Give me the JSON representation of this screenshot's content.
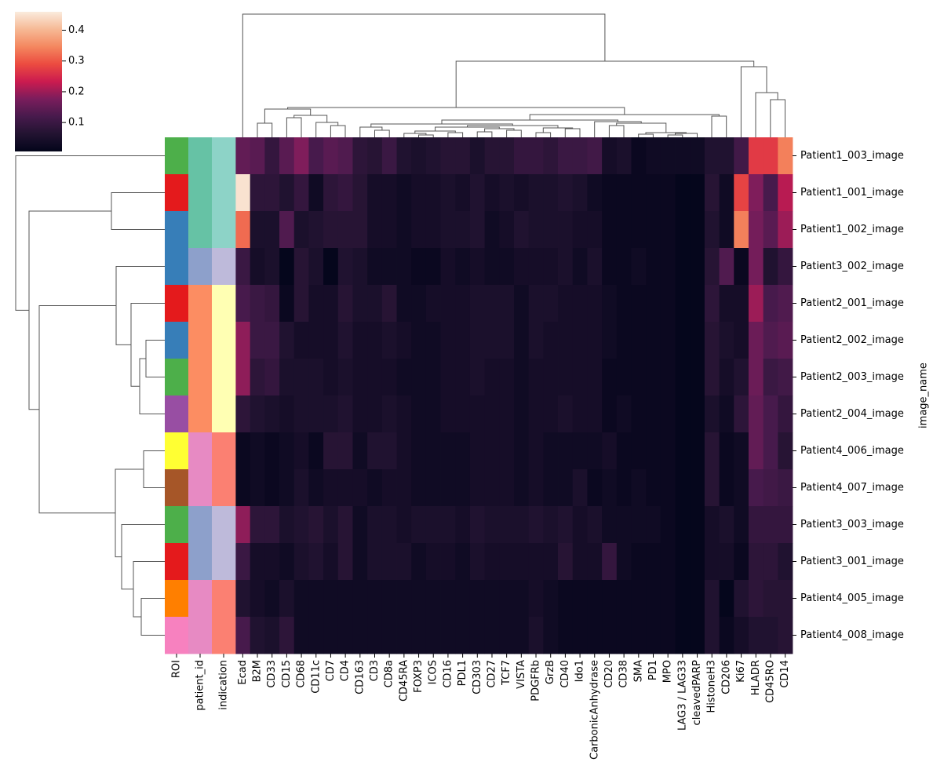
{
  "chart_data": {
    "type": "heatmap",
    "rows": [
      "Patient1_003_image",
      "Patient1_001_image",
      "Patient1_002_image",
      "Patient3_002_image",
      "Patient2_001_image",
      "Patient2_002_image",
      "Patient2_003_image",
      "Patient2_004_image",
      "Patient4_006_image",
      "Patient4_007_image",
      "Patient3_003_image",
      "Patient3_001_image",
      "Patient4_005_image",
      "Patient4_008_image"
    ],
    "columns": [
      "Ecad",
      "B2M",
      "CD33",
      "CD15",
      "CD68",
      "CD11c",
      "CD7",
      "CD4",
      "CD163",
      "CD3",
      "CD8a",
      "CD45RA",
      "FOXP3",
      "ICOS",
      "CD16",
      "PDL1",
      "CD303",
      "CD27",
      "TCF7",
      "VISTA",
      "PDGFRb",
      "GrzB",
      "CD40",
      "Ido1",
      "CarbonicAnhydrase",
      "CD20",
      "CD38",
      "SMA",
      "PD1",
      "MPO",
      "LAG3 / LAG33",
      "cleavedPARP",
      "HistoneH3",
      "CD206",
      "Ki67",
      "HLADR",
      "CD45RO",
      "CD14"
    ],
    "y_label": "image_name",
    "values": [
      [
        0.15,
        0.14,
        0.09,
        0.14,
        0.18,
        0.12,
        0.14,
        0.13,
        0.08,
        0.07,
        0.1,
        0.06,
        0.05,
        0.06,
        0.07,
        0.07,
        0.05,
        0.07,
        0.07,
        0.09,
        0.09,
        0.08,
        0.1,
        0.1,
        0.11,
        0.04,
        0.05,
        0.02,
        0.03,
        0.03,
        0.03,
        0.03,
        0.06,
        0.06,
        0.11,
        0.27,
        0.27,
        0.34
      ],
      [
        0.45,
        0.08,
        0.08,
        0.06,
        0.09,
        0.03,
        0.08,
        0.09,
        0.07,
        0.04,
        0.04,
        0.03,
        0.04,
        0.04,
        0.05,
        0.04,
        0.06,
        0.04,
        0.05,
        0.04,
        0.05,
        0.05,
        0.06,
        0.05,
        0.03,
        0.02,
        0.02,
        0.02,
        0.02,
        0.02,
        0.01,
        0.01,
        0.07,
        0.03,
        0.28,
        0.18,
        0.12,
        0.22
      ],
      [
        0.32,
        0.05,
        0.05,
        0.13,
        0.05,
        0.06,
        0.07,
        0.07,
        0.07,
        0.04,
        0.04,
        0.03,
        0.04,
        0.04,
        0.05,
        0.05,
        0.06,
        0.03,
        0.04,
        0.06,
        0.05,
        0.05,
        0.05,
        0.04,
        0.04,
        0.02,
        0.02,
        0.02,
        0.02,
        0.02,
        0.01,
        0.01,
        0.06,
        0.03,
        0.34,
        0.17,
        0.14,
        0.2
      ],
      [
        0.1,
        0.04,
        0.05,
        0.01,
        0.07,
        0.05,
        0.01,
        0.06,
        0.05,
        0.03,
        0.03,
        0.03,
        0.02,
        0.02,
        0.04,
        0.03,
        0.04,
        0.03,
        0.03,
        0.04,
        0.04,
        0.04,
        0.05,
        0.03,
        0.05,
        0.02,
        0.02,
        0.03,
        0.02,
        0.02,
        0.01,
        0.01,
        0.07,
        0.13,
        0.02,
        0.17,
        0.06,
        0.09
      ],
      [
        0.12,
        0.1,
        0.09,
        0.02,
        0.07,
        0.04,
        0.04,
        0.07,
        0.05,
        0.05,
        0.07,
        0.03,
        0.03,
        0.04,
        0.04,
        0.04,
        0.05,
        0.05,
        0.05,
        0.03,
        0.05,
        0.05,
        0.04,
        0.04,
        0.04,
        0.03,
        0.02,
        0.02,
        0.02,
        0.02,
        0.01,
        0.01,
        0.08,
        0.04,
        0.04,
        0.2,
        0.12,
        0.13
      ],
      [
        0.19,
        0.1,
        0.1,
        0.06,
        0.04,
        0.04,
        0.04,
        0.06,
        0.04,
        0.04,
        0.05,
        0.04,
        0.03,
        0.03,
        0.04,
        0.04,
        0.05,
        0.05,
        0.05,
        0.03,
        0.05,
        0.04,
        0.04,
        0.04,
        0.04,
        0.03,
        0.02,
        0.02,
        0.02,
        0.02,
        0.01,
        0.01,
        0.07,
        0.05,
        0.04,
        0.16,
        0.13,
        0.14
      ],
      [
        0.19,
        0.08,
        0.09,
        0.05,
        0.05,
        0.05,
        0.04,
        0.05,
        0.04,
        0.04,
        0.04,
        0.03,
        0.03,
        0.03,
        0.04,
        0.04,
        0.05,
        0.04,
        0.04,
        0.03,
        0.04,
        0.04,
        0.04,
        0.04,
        0.04,
        0.02,
        0.02,
        0.02,
        0.02,
        0.02,
        0.01,
        0.01,
        0.07,
        0.04,
        0.06,
        0.16,
        0.1,
        0.11
      ],
      [
        0.08,
        0.06,
        0.05,
        0.04,
        0.05,
        0.05,
        0.05,
        0.06,
        0.04,
        0.04,
        0.05,
        0.04,
        0.03,
        0.03,
        0.04,
        0.04,
        0.04,
        0.04,
        0.04,
        0.03,
        0.04,
        0.04,
        0.05,
        0.04,
        0.04,
        0.02,
        0.03,
        0.02,
        0.02,
        0.02,
        0.01,
        0.01,
        0.05,
        0.03,
        0.08,
        0.15,
        0.12,
        0.09
      ],
      [
        0.02,
        0.03,
        0.02,
        0.03,
        0.04,
        0.02,
        0.07,
        0.07,
        0.03,
        0.06,
        0.06,
        0.04,
        0.03,
        0.03,
        0.03,
        0.03,
        0.04,
        0.04,
        0.04,
        0.03,
        0.04,
        0.03,
        0.03,
        0.03,
        0.03,
        0.04,
        0.02,
        0.02,
        0.02,
        0.02,
        0.01,
        0.01,
        0.07,
        0.02,
        0.03,
        0.15,
        0.12,
        0.07
      ],
      [
        0.02,
        0.03,
        0.02,
        0.03,
        0.05,
        0.03,
        0.04,
        0.04,
        0.04,
        0.03,
        0.04,
        0.04,
        0.03,
        0.03,
        0.03,
        0.03,
        0.04,
        0.04,
        0.04,
        0.03,
        0.04,
        0.03,
        0.03,
        0.05,
        0.02,
        0.03,
        0.02,
        0.03,
        0.02,
        0.02,
        0.01,
        0.01,
        0.07,
        0.02,
        0.03,
        0.12,
        0.11,
        0.1
      ],
      [
        0.19,
        0.08,
        0.08,
        0.05,
        0.06,
        0.07,
        0.05,
        0.07,
        0.03,
        0.05,
        0.05,
        0.04,
        0.05,
        0.05,
        0.05,
        0.04,
        0.06,
        0.05,
        0.05,
        0.05,
        0.06,
        0.05,
        0.06,
        0.04,
        0.05,
        0.03,
        0.03,
        0.03,
        0.03,
        0.02,
        0.01,
        0.01,
        0.04,
        0.05,
        0.03,
        0.09,
        0.09,
        0.09
      ],
      [
        0.1,
        0.04,
        0.04,
        0.03,
        0.05,
        0.06,
        0.04,
        0.07,
        0.03,
        0.05,
        0.05,
        0.05,
        0.03,
        0.04,
        0.04,
        0.03,
        0.05,
        0.04,
        0.04,
        0.04,
        0.04,
        0.04,
        0.07,
        0.04,
        0.04,
        0.09,
        0.03,
        0.02,
        0.02,
        0.02,
        0.01,
        0.01,
        0.04,
        0.04,
        0.02,
        0.08,
        0.08,
        0.06
      ],
      [
        0.06,
        0.04,
        0.03,
        0.05,
        0.03,
        0.03,
        0.03,
        0.03,
        0.03,
        0.03,
        0.03,
        0.03,
        0.03,
        0.03,
        0.03,
        0.03,
        0.03,
        0.03,
        0.03,
        0.03,
        0.04,
        0.03,
        0.02,
        0.02,
        0.02,
        0.02,
        0.02,
        0.02,
        0.02,
        0.02,
        0.01,
        0.01,
        0.06,
        0.01,
        0.06,
        0.08,
        0.07,
        0.07
      ],
      [
        0.12,
        0.06,
        0.05,
        0.08,
        0.03,
        0.03,
        0.03,
        0.03,
        0.03,
        0.03,
        0.03,
        0.03,
        0.03,
        0.03,
        0.03,
        0.03,
        0.03,
        0.03,
        0.03,
        0.03,
        0.05,
        0.03,
        0.02,
        0.02,
        0.02,
        0.02,
        0.02,
        0.02,
        0.02,
        0.02,
        0.01,
        0.01,
        0.06,
        0.02,
        0.04,
        0.06,
        0.06,
        0.07
      ]
    ],
    "row_annotations": [
      {
        "name": "ROI",
        "colors": [
          "#4daf4a",
          "#e41a1c",
          "#377eb8",
          "#377eb8",
          "#e41a1c",
          "#377eb8",
          "#4daf4a",
          "#984ea3",
          "#ffff33",
          "#a65628",
          "#4daf4a",
          "#e41a1c",
          "#ff7f00",
          "#f781bf"
        ]
      },
      {
        "name": "patient_id",
        "colors": [
          "#66c2a5",
          "#66c2a5",
          "#66c2a5",
          "#8da0cb",
          "#fc8d62",
          "#fc8d62",
          "#fc8d62",
          "#fc8d62",
          "#e78ac3",
          "#e78ac3",
          "#8da0cb",
          "#8da0cb",
          "#e78ac3",
          "#e78ac3"
        ]
      },
      {
        "name": "indication",
        "colors": [
          "#8dd3c7",
          "#8dd3c7",
          "#8dd3c7",
          "#bebada",
          "#ffffb3",
          "#ffffb3",
          "#ffffb3",
          "#ffffb3",
          "#fb8072",
          "#fb8072",
          "#bebada",
          "#bebada",
          "#fb8072",
          "#fb8072"
        ]
      }
    ],
    "colormap": [
      "#03051a",
      "#221331",
      "#471a4c",
      "#7a1d5c",
      "#cb1b4f",
      "#ec4b40",
      "#f4875f",
      "#f6b995",
      "#faebdd"
    ],
    "clim": [
      0.006,
      0.46
    ],
    "colorbar_ticks": [
      0.1,
      0.2,
      0.3,
      0.4
    ]
  }
}
